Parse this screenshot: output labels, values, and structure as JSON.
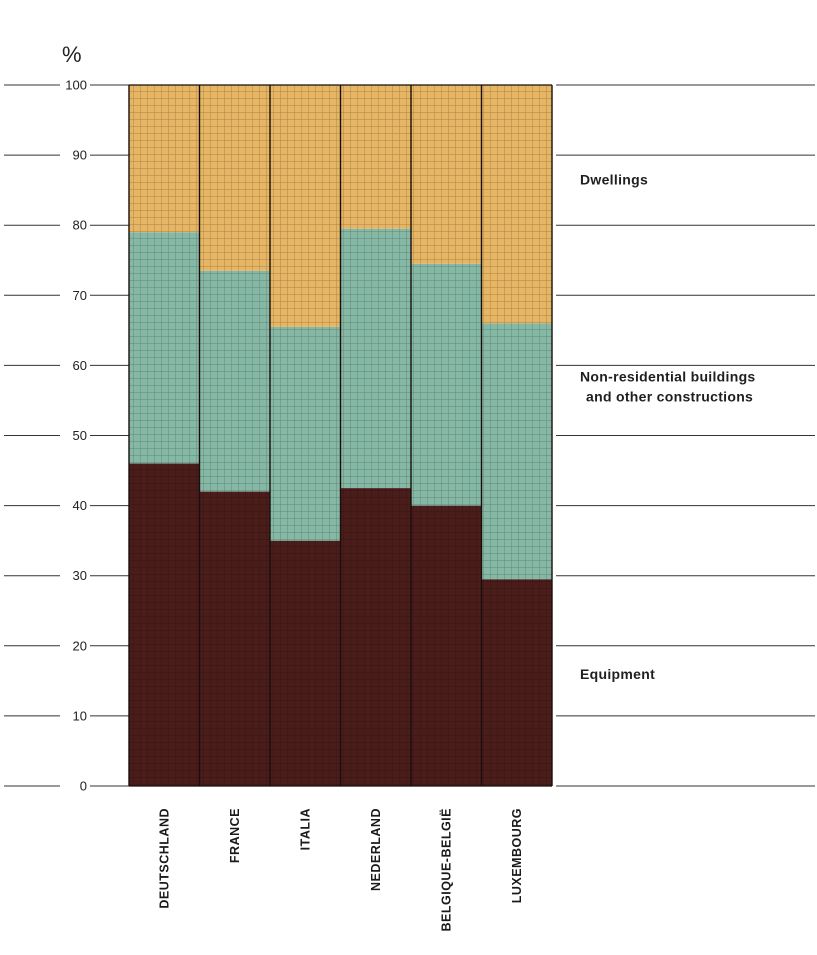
{
  "chart_data": {
    "type": "bar",
    "stacked": true,
    "unit_label": "%",
    "ylim": [
      0,
      100
    ],
    "yticks": [
      0,
      10,
      20,
      30,
      40,
      50,
      60,
      70,
      80,
      90,
      100
    ],
    "grid": true,
    "categories": [
      "DEUTSCHLAND",
      "FRANCE",
      "ITALIA",
      "NEDERLAND",
      "BELGIQUE-BELGIË",
      "LUXEMBOURG"
    ],
    "series": [
      {
        "name": "Equipment",
        "values": [
          46,
          42,
          35,
          42.5,
          40,
          29.5
        ]
      },
      {
        "name": "Non-residential buildings and other constructions",
        "values": [
          33,
          31.5,
          30.5,
          37,
          34.5,
          36.5
        ]
      },
      {
        "name": "Dwellings",
        "values": [
          21,
          26.5,
          34.5,
          20.5,
          25.5,
          34
        ]
      }
    ],
    "legend": {
      "placement": "right",
      "entries": [
        {
          "lines": [
            "Dwellings"
          ],
          "series": 2
        },
        {
          "lines": [
            "Non-residential buildings",
            "and other constructions"
          ],
          "series": 1
        },
        {
          "lines": [
            "Equipment"
          ],
          "series": 0
        }
      ]
    },
    "colors": {
      "Equipment": "#4a1d1b",
      "Non-residential buildings and other constructions": "#86b8a6",
      "Dwellings": "#e6b665",
      "grid_dark": "#2a1210",
      "grid_light": "#4f6b60",
      "grid_warm": "#8a6a3a"
    }
  }
}
